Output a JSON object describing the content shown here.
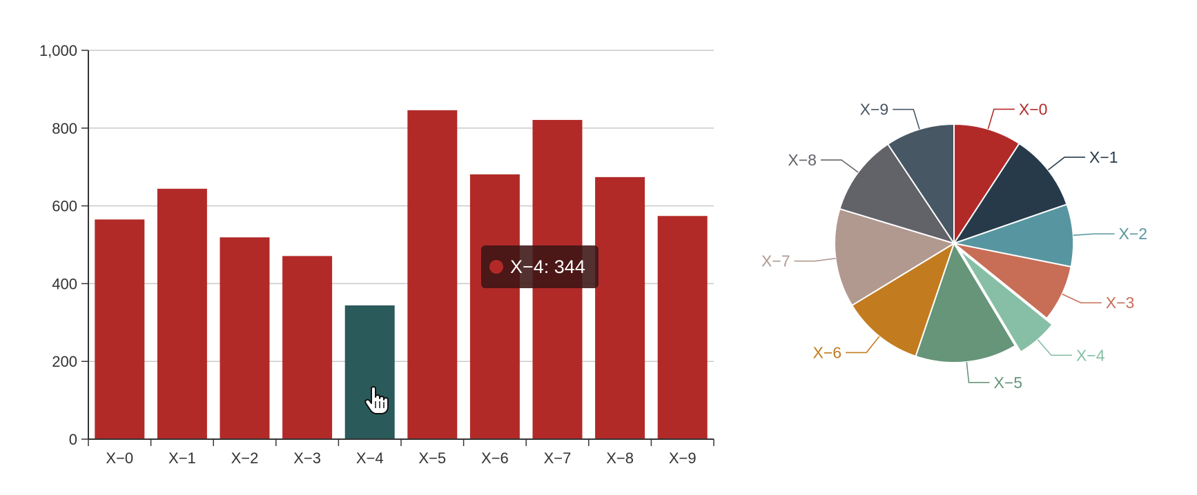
{
  "chart_data": [
    {
      "type": "bar",
      "categories": [
        "X−0",
        "X−1",
        "X−2",
        "X−3",
        "X−4",
        "X−5",
        "X−6",
        "X−7",
        "X−8",
        "X−9"
      ],
      "values": [
        565,
        644,
        519,
        471,
        344,
        846,
        681,
        821,
        674,
        574
      ],
      "ylim": [
        0,
        1000
      ],
      "yticks": [
        0,
        200,
        400,
        600,
        800,
        1000
      ],
      "ytick_labels": [
        "0",
        "200",
        "400",
        "600",
        "800",
        "1,000"
      ],
      "grid": true,
      "highlighted_index": 4,
      "bar_color": "#b22a28",
      "highlight_color": "#2b5a5b"
    },
    {
      "type": "pie",
      "categories": [
        "X−0",
        "X−1",
        "X−2",
        "X−3",
        "X−4",
        "X−5",
        "X−6",
        "X−7",
        "X−8",
        "X−9"
      ],
      "values": [
        565,
        644,
        519,
        471,
        344,
        846,
        681,
        821,
        674,
        574
      ],
      "colors": [
        "#b22a28",
        "#263a4a",
        "#5796a0",
        "#c86d56",
        "#86bfa5",
        "#669579",
        "#c27b1f",
        "#b19990",
        "#626369",
        "#475764"
      ],
      "highlighted_index": 4
    }
  ],
  "tooltip": {
    "text": "X−4: 344",
    "dot_color": "#b22a28"
  }
}
